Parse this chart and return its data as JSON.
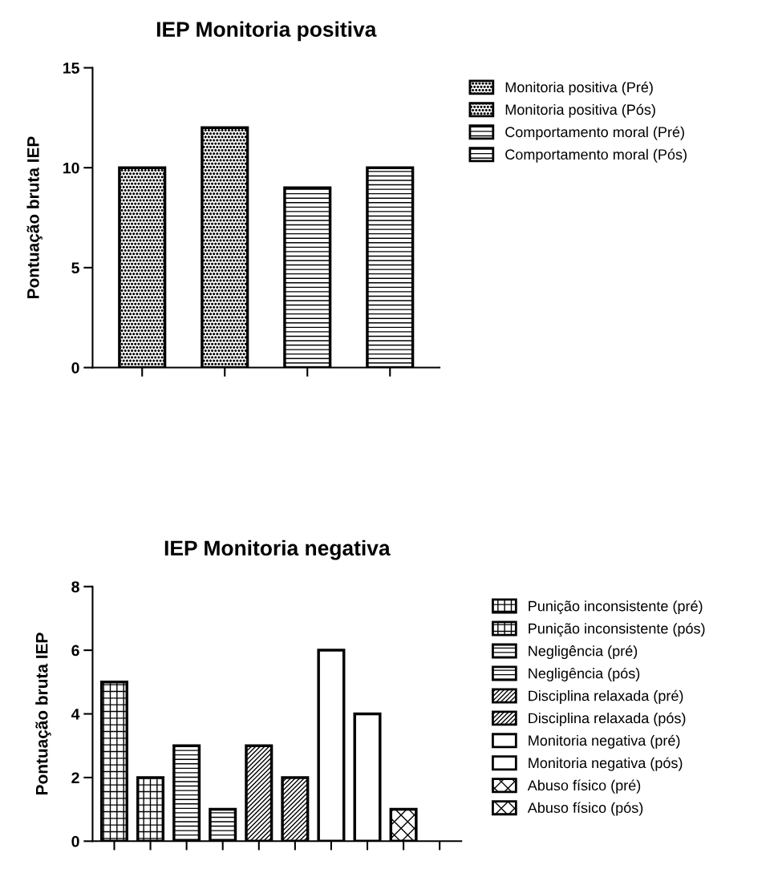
{
  "chart_data": [
    {
      "type": "bar",
      "title": "IEP Monitoria positiva",
      "ylabel": "Pontuação bruta IEP",
      "categories": [
        null,
        null,
        null,
        null
      ],
      "ylim": [
        0,
        15
      ],
      "yticks": [
        0,
        5,
        10,
        15
      ],
      "tick_labels": "y",
      "grid": false,
      "legend": "top right",
      "series": [
        {
          "name": "Monitoria positiva (Pré)",
          "color": "#000000",
          "values": [
            10,
            null,
            null,
            null
          ]
        },
        {
          "name": "Monitoria positiva (Pós)",
          "color": "#000000",
          "values": [
            null,
            12,
            null,
            null
          ]
        },
        {
          "name": "Comportamento moral (Pré)",
          "color": "#000000",
          "values": [
            null,
            null,
            9,
            null
          ]
        },
        {
          "name": "Comportamento moral (Pós)",
          "color": "#000000",
          "values": [
            null,
            null,
            null,
            10
          ]
        }
      ]
    },
    {
      "type": "bar",
      "title": "IEP Monitoria negativa",
      "ylabel": "Pontuação bruta IEP",
      "categories": [
        null,
        null,
        null,
        null,
        null,
        null,
        null,
        null,
        null,
        null
      ],
      "ylim": [
        0,
        8
      ],
      "yticks": [
        0,
        2,
        4,
        6,
        8
      ],
      "tick_labels": "y",
      "grid": false,
      "legend": "top right",
      "series": [
        {
          "name": "Punição inconsistente (pré)",
          "color": "#000000",
          "values": [
            5,
            null,
            null,
            null,
            null,
            null,
            null,
            null,
            null,
            null
          ]
        },
        {
          "name": "Punição inconsistente (pós)",
          "color": "#000000",
          "values": [
            null,
            2,
            null,
            null,
            null,
            null,
            null,
            null,
            null,
            null
          ]
        },
        {
          "name": "Negligência (pré)",
          "color": "#000000",
          "values": [
            null,
            null,
            3,
            null,
            null,
            null,
            null,
            null,
            null,
            null
          ]
        },
        {
          "name": "Negligência (pós)",
          "color": "#000000",
          "values": [
            null,
            null,
            null,
            1,
            null,
            null,
            null,
            null,
            null,
            null
          ]
        },
        {
          "name": "Disciplina relaxada (pré)",
          "color": "#000000",
          "values": [
            null,
            null,
            null,
            null,
            3,
            null,
            null,
            null,
            null,
            null
          ]
        },
        {
          "name": "Disciplina relaxada (pós)",
          "color": "#000000",
          "values": [
            null,
            null,
            null,
            null,
            null,
            2,
            null,
            null,
            null,
            null
          ]
        },
        {
          "name": "Monitoria negativa (pré)",
          "color": "#ffffff",
          "values": [
            null,
            null,
            null,
            null,
            null,
            null,
            6,
            null,
            null,
            null
          ]
        },
        {
          "name": "Monitoria negativa (pós)",
          "color": "#ffffff",
          "values": [
            null,
            null,
            null,
            null,
            null,
            null,
            null,
            4,
            null,
            null
          ]
        },
        {
          "name": "Abuso físico (pré)",
          "color": "#000000",
          "values": [
            null,
            null,
            null,
            null,
            null,
            null,
            null,
            null,
            1,
            null
          ]
        },
        {
          "name": "Abuso físico (pós)",
          "color": "#000000",
          "values": [
            null,
            null,
            null,
            null,
            null,
            null,
            null,
            null,
            null,
            null
          ]
        }
      ]
    }
  ]
}
